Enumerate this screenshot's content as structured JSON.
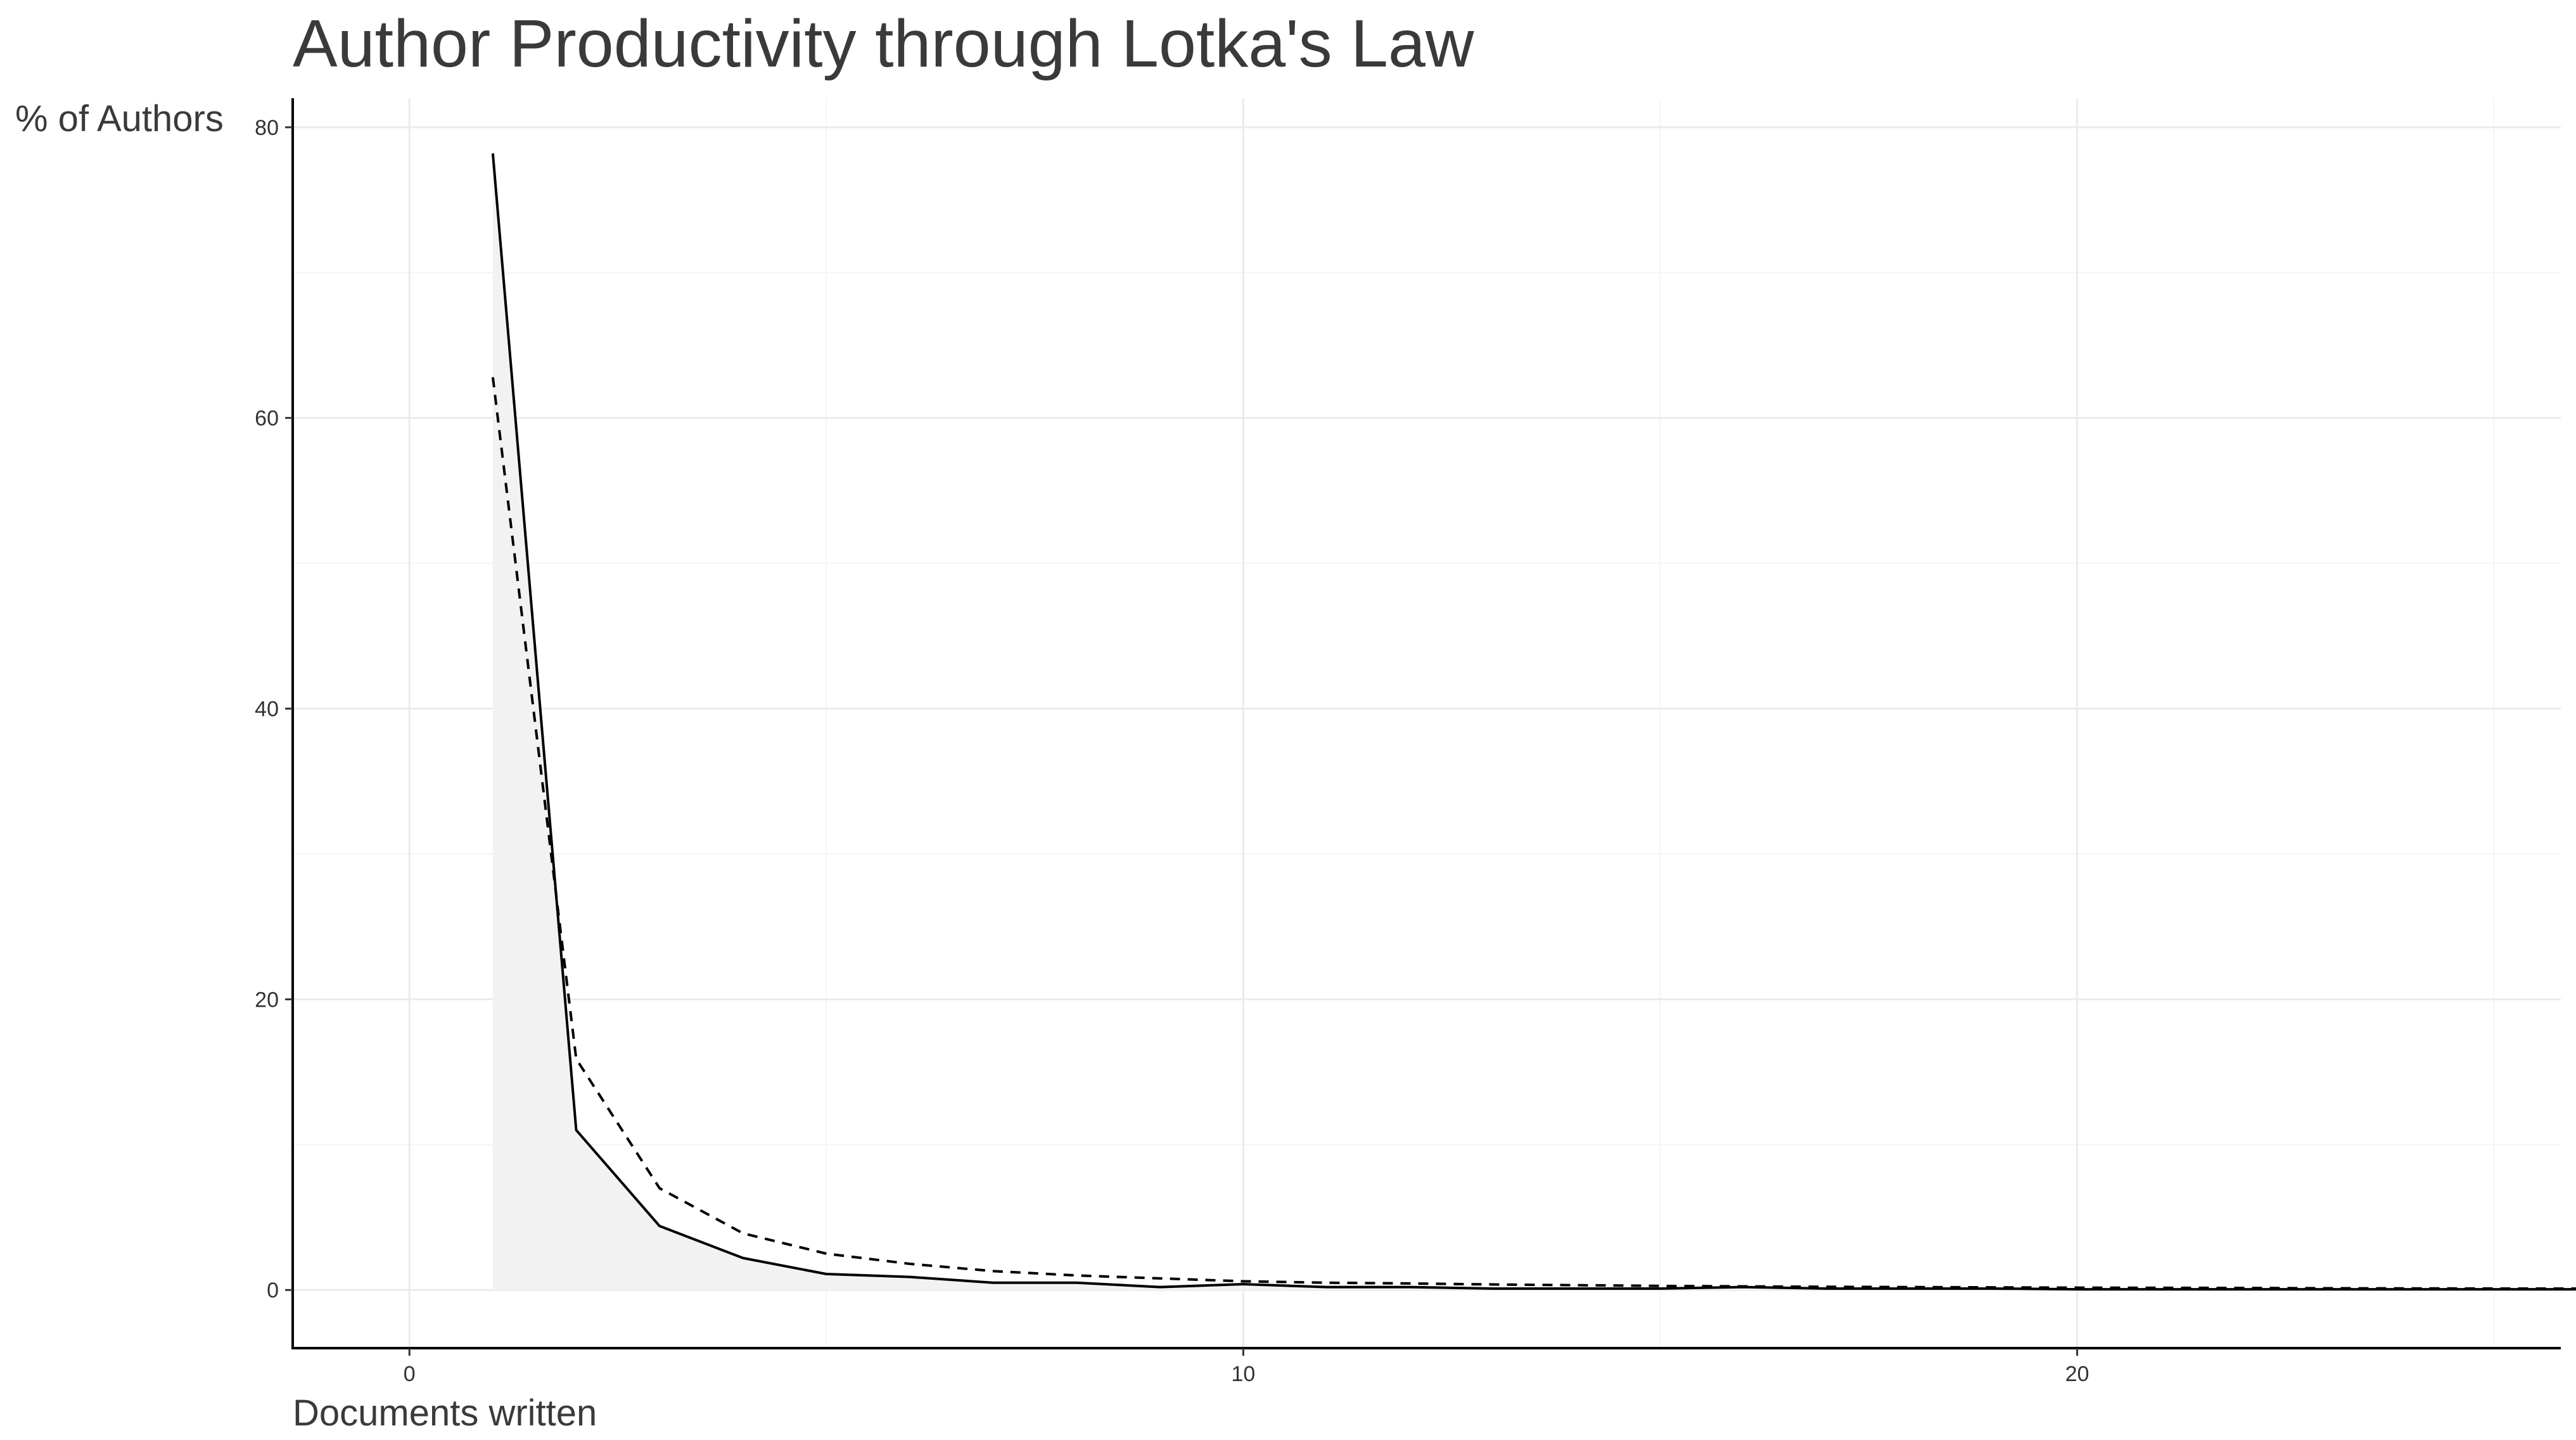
{
  "chart_data": {
    "type": "line",
    "title": "Author Productivity through Lotka's Law",
    "xlabel": "Documents written",
    "ylabel": "% of Authors",
    "xlim": [
      -1.4,
      25.8
    ],
    "ylim": [
      -4,
      82
    ],
    "x_ticks": [
      0,
      10,
      20
    ],
    "y_ticks": [
      0,
      20,
      40,
      60,
      80
    ],
    "grid": true,
    "legend": "none",
    "series": [
      {
        "style": "solid",
        "color": "#000000",
        "fill": "#f2f2f2",
        "x": [
          1,
          2,
          3,
          4,
          5,
          6,
          7,
          8,
          9,
          10,
          11,
          12,
          13,
          14,
          15,
          16,
          17,
          18,
          19,
          20,
          21,
          22,
          23,
          24,
          25,
          26
        ],
        "y": [
          78.2,
          11.0,
          4.4,
          2.2,
          1.1,
          0.9,
          0.5,
          0.5,
          0.2,
          0.4,
          0.2,
          0.2,
          0.1,
          0.1,
          0.1,
          0.2,
          0.1,
          0.1,
          0.1,
          0.05,
          0.05,
          0.05,
          0.05,
          0.05,
          0.05,
          0.05
        ]
      },
      {
        "style": "dashed",
        "color": "#000000",
        "x": [
          1,
          2,
          3,
          4,
          5,
          6,
          7,
          8,
          9,
          10,
          11,
          12,
          13,
          14,
          15,
          16,
          17,
          18,
          19,
          20,
          21,
          22,
          23,
          24,
          25,
          26
        ],
        "y": [
          62.8,
          15.9,
          7.0,
          3.9,
          2.5,
          1.8,
          1.3,
          1.0,
          0.8,
          0.6,
          0.5,
          0.45,
          0.38,
          0.33,
          0.28,
          0.25,
          0.22,
          0.2,
          0.18,
          0.16,
          0.15,
          0.14,
          0.12,
          0.11,
          0.1,
          0.1
        ]
      }
    ]
  }
}
